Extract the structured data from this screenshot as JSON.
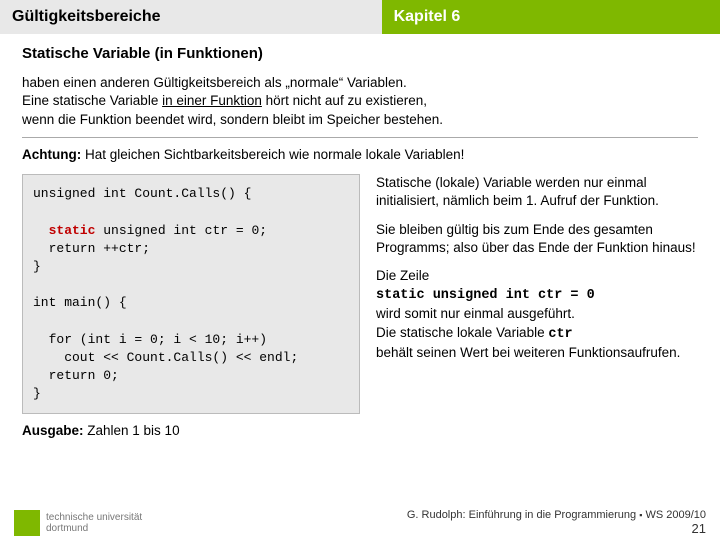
{
  "header": {
    "left": "Gültigkeitsbereiche",
    "right": "Kapitel 6"
  },
  "subheading": "Statische Variable (in Funktionen)",
  "intro": {
    "p1a": "haben einen anderen Gültigkeitsbereich als „normale“ Variablen.",
    "p1b_pre": "Eine statische Variable ",
    "p1b_u": "in einer Funktion",
    "p1b_post": " hört nicht auf zu existieren,",
    "p1c": "wenn die Funktion beendet wird, sondern bleibt im Speicher bestehen."
  },
  "warning": {
    "label": "Achtung:",
    "text": " Hat gleichen Sichtbarkeitsbereich wie normale lokale Variablen!"
  },
  "code": {
    "l1": "unsigned int Count.Calls() {",
    "blank": "",
    "l2_kw": "  static",
    "l2_rest": " unsigned int ctr = 0;",
    "l3": "  return ++ctr;",
    "l4": "}",
    "l5": "int main() {",
    "l6": "  for (int i = 0; i < 10; i++)",
    "l7": "    cout << Count.Calls() << endl;",
    "l8": "  return 0;",
    "l9": "}"
  },
  "output": {
    "label": "Ausgabe:",
    "text": " Zahlen 1 bis 10"
  },
  "right": {
    "p1": "Statische (lokale) Variable werden nur einmal initialisiert, nämlich beim 1. Aufruf der Funktion.",
    "p2": "Sie bleiben gültig bis zum Ende des gesamten Programms; also über das Ende der Funktion hinaus!",
    "p3a": "Die Zeile",
    "p3code": "static unsigned int ctr = 0",
    "p3b": "wird somit nur einmal ausgeführt.",
    "p3c_pre": "Die statische lokale Variable ",
    "p3c_code": "ctr",
    "p3d": "behält seinen Wert bei weiteren Funktionsaufrufen."
  },
  "footer": {
    "uniTop": "technische universität",
    "uniBot": "dortmund",
    "credit_a": "G. Rudolph: Einführung in die Programmierung ",
    "credit_b": " WS 2009/10",
    "page": "21"
  },
  "colors": {
    "accent": "#7fb800",
    "headerGrey": "#e8e8e8",
    "staticRed": "#c00000"
  }
}
